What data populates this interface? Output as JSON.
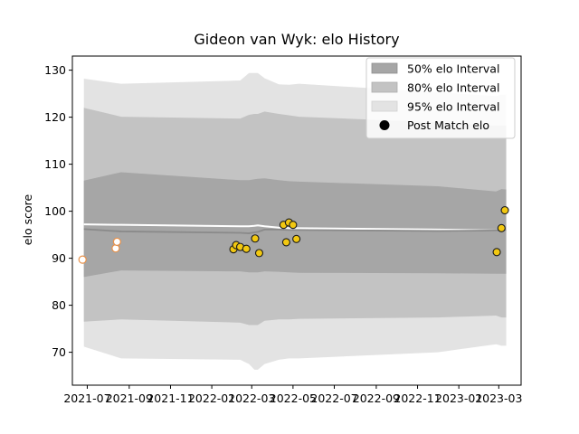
{
  "chart_data": {
    "type": "scatter",
    "title": "Gideon van Wyk: elo History",
    "xlabel": "",
    "ylabel": "elo score",
    "xlim": [
      "2021-06-09",
      "2023-04-03"
    ],
    "ylim": [
      63,
      133
    ],
    "yticks": [
      70,
      80,
      90,
      100,
      110,
      120,
      130
    ],
    "xticks": [
      "2021-07",
      "2021-09",
      "2021-11",
      "2022-01",
      "2022-03",
      "2022-05",
      "2022-07",
      "2022-09",
      "2022-11",
      "2023-01",
      "2023-03"
    ],
    "legend_position": "top-right",
    "legend": {
      "band50": "50% elo Interval",
      "band80": "80% elo Interval",
      "band95": "95% elo Interval",
      "points": "Post Match elo"
    },
    "bands": {
      "dates": [
        "2021-06-26",
        "2021-08-20",
        "2022-02-12",
        "2022-02-25",
        "2022-03-05",
        "2022-03-10",
        "2022-03-20",
        "2022-04-10",
        "2022-04-25",
        "2022-05-10",
        "2022-12-01",
        "2023-02-25",
        "2023-03-05",
        "2023-03-12"
      ],
      "mean": [
        96.2,
        95.7,
        95.4,
        95.3,
        95.5,
        95.6,
        96.1,
        96.1,
        96.0,
        96.0,
        95.8,
        95.9,
        95.9,
        96.0
      ],
      "p50_low": [
        86.0,
        87.4,
        87.2,
        87.0,
        87.0,
        87.0,
        87.2,
        87.1,
        87.0,
        86.9,
        86.8,
        86.7,
        86.7,
        86.7
      ],
      "p50_high": [
        106.5,
        108.3,
        106.6,
        106.6,
        106.8,
        106.9,
        107.0,
        106.6,
        106.4,
        106.3,
        105.3,
        104.2,
        104.7,
        104.6
      ],
      "p80_low": [
        76.5,
        77.0,
        76.3,
        75.8,
        75.8,
        75.8,
        76.7,
        77.0,
        77.0,
        77.1,
        77.4,
        77.8,
        77.4,
        77.4
      ],
      "p80_high": [
        122.0,
        120.1,
        119.7,
        120.5,
        120.7,
        120.7,
        121.2,
        120.7,
        120.4,
        120.1,
        118.9,
        118.2,
        118.2,
        118.2
      ],
      "p95_low": [
        71.2,
        68.7,
        68.4,
        67.5,
        66.3,
        66.3,
        67.5,
        68.4,
        68.7,
        68.7,
        70.0,
        71.7,
        71.4,
        71.4
      ],
      "p95_high": [
        128.2,
        127.1,
        127.8,
        129.4,
        129.4,
        129.4,
        128.3,
        127.0,
        126.9,
        127.1,
        125.3,
        124.5,
        124.8,
        124.8
      ],
      "upper_line": [
        97.2,
        97.1,
        96.8,
        96.8,
        96.9,
        97.0,
        96.8,
        96.5,
        96.4,
        96.4,
        96.1,
        95.9,
        95.9,
        96.0
      ]
    },
    "points_hollow": [
      {
        "x": "2021-06-24",
        "y": 89.7
      },
      {
        "x": "2021-08-12",
        "y": 92.1
      },
      {
        "x": "2021-08-14",
        "y": 93.5
      }
    ],
    "points_filled": [
      {
        "x": "2022-02-02",
        "y": 91.9
      },
      {
        "x": "2022-02-06",
        "y": 92.8
      },
      {
        "x": "2022-02-12",
        "y": 92.4
      },
      {
        "x": "2022-02-21",
        "y": 92.0
      },
      {
        "x": "2022-03-06",
        "y": 94.2
      },
      {
        "x": "2022-03-12",
        "y": 91.1
      },
      {
        "x": "2022-04-17",
        "y": 97.1
      },
      {
        "x": "2022-04-21",
        "y": 93.4
      },
      {
        "x": "2022-04-25",
        "y": 97.6
      },
      {
        "x": "2022-05-01",
        "y": 97.1
      },
      {
        "x": "2022-05-06",
        "y": 94.1
      },
      {
        "x": "2023-02-26",
        "y": 91.3
      },
      {
        "x": "2023-03-05",
        "y": 96.4
      },
      {
        "x": "2023-03-10",
        "y": 100.2
      }
    ],
    "colors": {
      "band50": "#a6a6a6",
      "band80": "#c3c3c3",
      "band95": "#e3e3e3",
      "mean_line": "#8a8a8a",
      "upper_line": "#ffffff",
      "point_fill": "#f2c811",
      "point_edge": "#1a1a1a",
      "hollow_edge": "#e8914a",
      "hollow_fill": "#ffffff"
    }
  }
}
